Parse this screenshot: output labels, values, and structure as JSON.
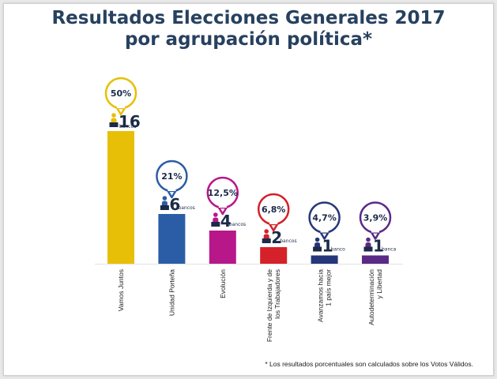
{
  "chart_data": {
    "type": "bar",
    "title_line1": "Resultados Elecciones Generales 2017",
    "title_line2": "por agrupación política*",
    "ylabel": "bancos",
    "ylim": [
      0,
      16
    ],
    "categories": [
      {
        "lines": [
          "Vamos Juntos"
        ],
        "seats": 16,
        "percent_label": "50%",
        "unit_label": "bancos",
        "color": "#e7bf07"
      },
      {
        "lines": [
          "Unidad Porteña"
        ],
        "seats": 6,
        "percent_label": "21%",
        "unit_label": "bancos",
        "color": "#2a5da6"
      },
      {
        "lines": [
          "Evolución"
        ],
        "seats": 4,
        "percent_label": "12,5%",
        "unit_label": "bancos",
        "color": "#b8178a"
      },
      {
        "lines": [
          "Frente de Izquierda y de",
          "los Trabajadores"
        ],
        "seats": 2,
        "percent_label": "6,8%",
        "unit_label": "bancos",
        "color": "#d52129"
      },
      {
        "lines": [
          "Avanzamos hacia",
          "1 país mejor"
        ],
        "seats": 1,
        "percent_label": "4,7%",
        "unit_label": "banco",
        "color": "#25377a"
      },
      {
        "lines": [
          "Autodeterminación",
          "y Libertad"
        ],
        "seats": 1,
        "percent_label": "3,9%",
        "unit_label": "banca",
        "color": "#5b2a86"
      }
    ],
    "footnote": "* Los resultados porcentuales son calculados sobre los Votos Válidos."
  }
}
